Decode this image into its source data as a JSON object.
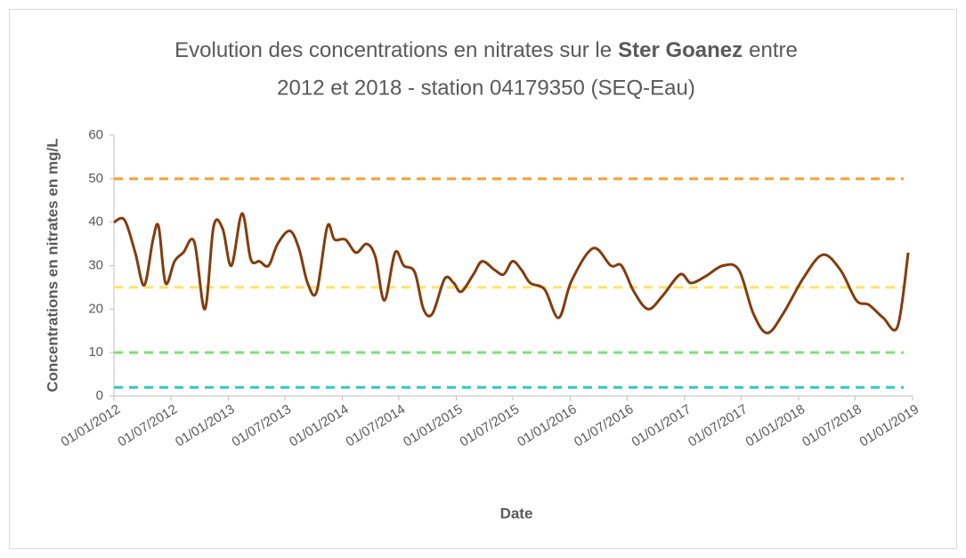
{
  "chart_data": {
    "type": "line",
    "title": [
      "Evolution des concentrations en nitrates sur le",
      "Ster Goanez",
      "entre",
      "2012 et 2018 - station 04179350 (SEQ-Eau)"
    ],
    "x_label": "Date",
    "y_label": "Concentrations en nitrates en mg/L",
    "x": [
      "01/01/2012",
      "04/02/2012",
      "09/03/2012",
      "07/04/2012",
      "05/05/2012",
      "23/05/2012",
      "14/06/2012",
      "13/07/2012",
      "10/08/2012",
      "14/09/2012",
      "18/10/2012",
      "15/11/2012",
      "14/12/2012",
      "11/01/2013",
      "14/02/2013",
      "14/03/2013",
      "11/04/2013",
      "10/05/2013",
      "08/06/2013",
      "17/07/2013",
      "15/08/2013",
      "12/09/2013",
      "11/10/2013",
      "14/11/2013",
      "07/12/2013",
      "11/01/2014",
      "14/02/2014",
      "20/03/2014",
      "17/04/2014",
      "16/05/2014",
      "19/06/2014",
      "17/07/2014",
      "21/08/2014",
      "18/09/2014",
      "17/10/2014",
      "25/11/2014",
      "24/12/2014",
      "17/01/2015",
      "25/02/2015",
      "25/03/2015",
      "04/05/2015",
      "02/06/2015",
      "30/06/2015",
      "29/07/2015",
      "26/08/2015",
      "11/10/2015",
      "25/11/2015",
      "05/01/2016",
      "14/03/2016",
      "10/05/2016",
      "13/06/2016",
      "23/07/2016",
      "06/09/2016",
      "22/10/2016",
      "18/12/2016",
      "21/01/2017",
      "08/03/2017",
      "04/05/2017",
      "24/06/2017",
      "09/08/2017",
      "23/09/2017",
      "13/11/2017",
      "15/01/2018",
      "19/03/2018",
      "15/05/2018",
      "05/07/2018",
      "14/08/2018",
      "29/09/2018",
      "14/11/2018",
      "18/12/2018"
    ],
    "series": [
      {
        "color": "#843c0c",
        "values": [
          40,
          40.5,
          33,
          25.5,
          36,
          39,
          26,
          31,
          33,
          35.5,
          20,
          39,
          38.5,
          30,
          42,
          31.5,
          31,
          30,
          35,
          38,
          34,
          26,
          24,
          39,
          36,
          36,
          33,
          35,
          32,
          22,
          33,
          30,
          28.5,
          20,
          19,
          27,
          26,
          24,
          28,
          31,
          29,
          28,
          31,
          29,
          26,
          24.5,
          18,
          26.5,
          34,
          30,
          30,
          24,
          20,
          23,
          28,
          26,
          27.5,
          30,
          29,
          19,
          14.5,
          19,
          27,
          32.5,
          29,
          22,
          21,
          18,
          16,
          33
        ]
      }
    ],
    "reference_lines": [
      {
        "value": 50,
        "color": "#f7a030"
      },
      {
        "value": 25,
        "color": "#fde36a"
      },
      {
        "value": 10,
        "color": "#7ee07a"
      },
      {
        "value": 2,
        "color": "#35c6c6"
      }
    ],
    "xlim": [
      "01/01/2012",
      "01/01/2019"
    ],
    "xticks": [
      "01/01/2012",
      "01/07/2012",
      "01/01/2013",
      "01/07/2013",
      "01/01/2014",
      "01/07/2014",
      "01/01/2015",
      "01/07/2015",
      "01/01/2016",
      "01/07/2016",
      "01/01/2017",
      "01/07/2017",
      "01/01/2018",
      "01/07/2018",
      "01/01/2019"
    ],
    "ylim": [
      0,
      60
    ],
    "yticks": [
      0,
      10,
      20,
      30,
      40,
      50,
      60
    ],
    "grid": false
  }
}
